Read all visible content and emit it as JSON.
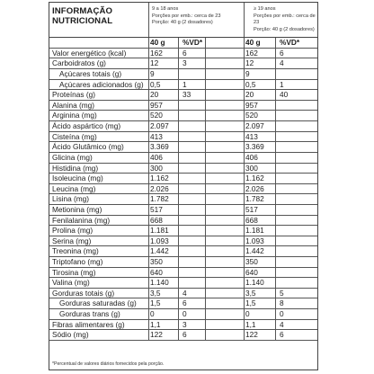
{
  "title_line1": "INFORMAÇÃO",
  "title_line2": "NUTRICIONAL",
  "group1": {
    "line1": "9 a 18 anos",
    "line2": "Porções por emb.: cerca de 23",
    "line3": "Porção: 40 g (2 dosadores)"
  },
  "group2": {
    "line1": "≥ 19 anos",
    "line2": "Porções por emb.: cerca de 23",
    "line3": "Porção: 40 g (2 dosadores)"
  },
  "column_headers": {
    "amount": "40 g",
    "dv": "%VD*"
  },
  "rows": [
    {
      "name": "Valor energético (kcal)",
      "v1": "162",
      "p1": "6",
      "v2": "162",
      "p2": "6",
      "indent": false
    },
    {
      "name": "Carboidratos (g)",
      "v1": "12",
      "p1": "3",
      "v2": "12",
      "p2": "4",
      "indent": false
    },
    {
      "name": "Açúcares totais (g)",
      "v1": "9",
      "p1": "",
      "v2": "9",
      "p2": "",
      "indent": true
    },
    {
      "name": "Açúcares adicionados (g)",
      "v1": "0,5",
      "p1": "1",
      "v2": "0,5",
      "p2": "1",
      "indent": true
    },
    {
      "name": "Proteínas (g)",
      "v1": "20",
      "p1": "33",
      "v2": "20",
      "p2": "40",
      "indent": false
    },
    {
      "name": "Alanina (mg)",
      "v1": "957",
      "p1": "",
      "v2": "957",
      "p2": "",
      "indent": false
    },
    {
      "name": "Arginina (mg)",
      "v1": "520",
      "p1": "",
      "v2": "520",
      "p2": "",
      "indent": false
    },
    {
      "name": "Ácido aspártico (mg)",
      "v1": "2.097",
      "p1": "",
      "v2": "2.097",
      "p2": "",
      "indent": false
    },
    {
      "name": "Cisteína (mg)",
      "v1": "413",
      "p1": "",
      "v2": "413",
      "p2": "",
      "indent": false
    },
    {
      "name": "Ácido Glutâmico (mg)",
      "v1": "3.369",
      "p1": "",
      "v2": "3.369",
      "p2": "",
      "indent": false
    },
    {
      "name": "Glicina (mg)",
      "v1": "406",
      "p1": "",
      "v2": "406",
      "p2": "",
      "indent": false
    },
    {
      "name": "Histidina (mg)",
      "v1": "300",
      "p1": "",
      "v2": "300",
      "p2": "",
      "indent": false
    },
    {
      "name": "Isoleucina (mg)",
      "v1": "1.162",
      "p1": "",
      "v2": "1.162",
      "p2": "",
      "indent": false
    },
    {
      "name": "Leucina (mg)",
      "v1": "2.026",
      "p1": "",
      "v2": "2.026",
      "p2": "",
      "indent": false
    },
    {
      "name": "Lisina (mg)",
      "v1": "1.782",
      "p1": "",
      "v2": "1.782",
      "p2": "",
      "indent": false
    },
    {
      "name": "Metionina (mg)",
      "v1": "517",
      "p1": "",
      "v2": "517",
      "p2": "",
      "indent": false
    },
    {
      "name": "Fenilalanina (mg)",
      "v1": "668",
      "p1": "",
      "v2": "668",
      "p2": "",
      "indent": false
    },
    {
      "name": "Prolina (mg)",
      "v1": "1.181",
      "p1": "",
      "v2": "1.181",
      "p2": "",
      "indent": false
    },
    {
      "name": "Serina (mg)",
      "v1": "1.093",
      "p1": "",
      "v2": "1.093",
      "p2": "",
      "indent": false
    },
    {
      "name": "Treonina (mg)",
      "v1": "1.442",
      "p1": "",
      "v2": "1.442",
      "p2": "",
      "indent": false
    },
    {
      "name": "Triptofano (mg)",
      "v1": "350",
      "p1": "",
      "v2": "350",
      "p2": "",
      "indent": false
    },
    {
      "name": "Tirosina (mg)",
      "v1": "640",
      "p1": "",
      "v2": "640",
      "p2": "",
      "indent": false
    },
    {
      "name": "Valina (mg)",
      "v1": "1.140",
      "p1": "",
      "v2": "1.140",
      "p2": "",
      "indent": false
    },
    {
      "name": "Gorduras totais (g)",
      "v1": "3,5",
      "p1": "4",
      "v2": "3,5",
      "p2": "5",
      "indent": false
    },
    {
      "name": "Gorduras saturadas (g)",
      "v1": "1,5",
      "p1": "6",
      "v2": "1,5",
      "p2": "8",
      "indent": true
    },
    {
      "name": "Gorduras trans (g)",
      "v1": "0",
      "p1": "0",
      "v2": "0",
      "p2": "0",
      "indent": true
    },
    {
      "name": "Fibras alimentares (g)",
      "v1": "1,1",
      "p1": "3",
      "v2": "1,1",
      "p2": "4",
      "indent": false
    },
    {
      "name": "Sódio (mg)",
      "v1": "122",
      "p1": "6",
      "v2": "122",
      "p2": "6",
      "indent": false
    }
  ],
  "footnote": "*Percentual de valores diários fornecidos pela porção."
}
